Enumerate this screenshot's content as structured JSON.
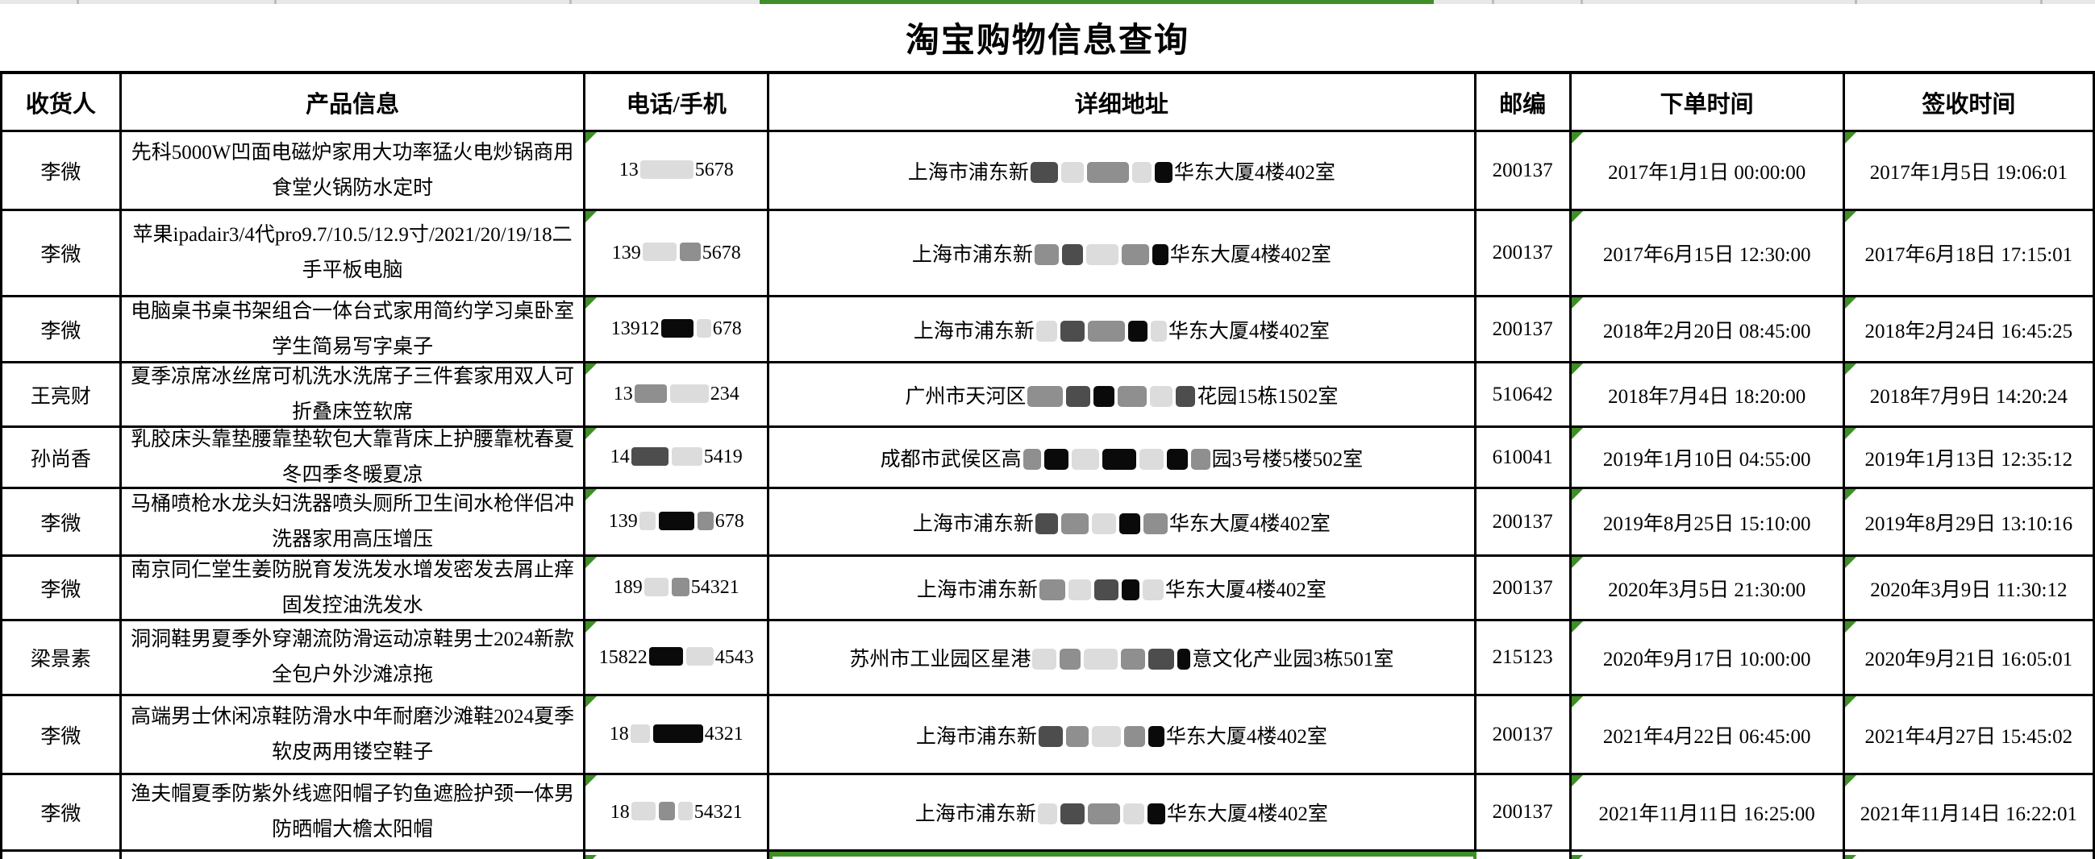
{
  "page": {
    "title": "淘宝购物信息查询"
  },
  "colors": {
    "accent_green": "#3f8e27",
    "grid_black": "#000000",
    "strip_gray": "#e8e8e8"
  },
  "table": {
    "columns": [
      {
        "key": "recipient",
        "label": "收货人",
        "marker": false
      },
      {
        "key": "product",
        "label": "产品信息",
        "marker": false
      },
      {
        "key": "phone",
        "label": "电话/手机",
        "marker": true
      },
      {
        "key": "address",
        "label": "详细地址",
        "marker": false
      },
      {
        "key": "postal",
        "label": "邮编",
        "marker": false
      },
      {
        "key": "order_time",
        "label": "下单时间",
        "marker": true
      },
      {
        "key": "sign_time",
        "label": "签收时间",
        "marker": true
      }
    ],
    "rows": [
      {
        "recipient": "李微",
        "product": "先科5000W凹面电磁炉家用大功率猛火电炒锅商用食堂火锅防水定时",
        "phone": {
          "segments": [
            {
              "t": "13"
            },
            {
              "m": "light",
              "w": 66
            },
            {
              "t": "5678"
            }
          ]
        },
        "address": {
          "segments": [
            {
              "t": "上海市浦东新"
            },
            {
              "m": "dark",
              "w": 34
            },
            {
              "m": "light",
              "w": 28
            },
            {
              "m": "mid",
              "w": 52
            },
            {
              "m": "light",
              "w": 24
            },
            {
              "m": "black",
              "w": 22
            },
            {
              "t": "华东大厦4楼402室"
            }
          ]
        },
        "postal": "200137",
        "order_time": "2017年1月1日 00:00:00",
        "sign_time": "2017年1月5日 19:06:01"
      },
      {
        "recipient": "李微",
        "product": "苹果ipadair3/4代pro9.7/10.5/12.9寸/2021/20/19/18二手平板电脑",
        "phone": {
          "segments": [
            {
              "t": "139"
            },
            {
              "m": "light",
              "w": 42
            },
            {
              "m": "mid",
              "w": 26
            },
            {
              "t": "5678"
            }
          ]
        },
        "address": {
          "segments": [
            {
              "t": "上海市浦东新"
            },
            {
              "m": "mid",
              "w": 30
            },
            {
              "m": "dark",
              "w": 26
            },
            {
              "m": "light",
              "w": 40
            },
            {
              "m": "mid",
              "w": 34
            },
            {
              "m": "black",
              "w": 20
            },
            {
              "t": "华东大厦4楼402室"
            }
          ]
        },
        "postal": "200137",
        "order_time": "2017年6月15日 12:30:00",
        "sign_time": "2017年6月18日 17:15:01"
      },
      {
        "recipient": "李微",
        "product": "电脑桌书桌书架组合一体台式家用简约学习桌卧室学生简易写字桌子",
        "phone": {
          "segments": [
            {
              "t": "13912"
            },
            {
              "m": "black",
              "w": 40
            },
            {
              "m": "light",
              "w": 18
            },
            {
              "t": "678"
            }
          ]
        },
        "address": {
          "segments": [
            {
              "t": "上海市浦东新"
            },
            {
              "m": "light",
              "w": 26
            },
            {
              "m": "dark",
              "w": 30
            },
            {
              "m": "mid",
              "w": 46
            },
            {
              "m": "black",
              "w": 24
            },
            {
              "m": "light",
              "w": 20
            },
            {
              "t": "华东大厦4楼402室"
            }
          ]
        },
        "postal": "200137",
        "order_time": "2018年2月20日 08:45:00",
        "sign_time": "2018年2月24日 16:45:25"
      },
      {
        "recipient": "王亮财",
        "product": "夏季凉席冰丝席可机洗水洗席子三件套家用双人可折叠床笠软席",
        "phone": {
          "segments": [
            {
              "t": "13"
            },
            {
              "m": "mid",
              "w": 40
            },
            {
              "m": "light",
              "w": 48
            },
            {
              "t": "234"
            }
          ]
        },
        "address": {
          "segments": [
            {
              "t": "广州市天河区"
            },
            {
              "m": "mid",
              "w": 44
            },
            {
              "m": "dark",
              "w": 30
            },
            {
              "m": "black",
              "w": 26
            },
            {
              "m": "mid",
              "w": 36
            },
            {
              "m": "light",
              "w": 28
            },
            {
              "m": "dark",
              "w": 24
            },
            {
              "t": "花园15栋1502室"
            }
          ]
        },
        "postal": "510642",
        "order_time": "2018年7月4日 18:20:00",
        "sign_time": "2018年7月9日 14:20:24"
      },
      {
        "recipient": "孙尚香",
        "product": "乳胶床头靠垫腰靠垫软包大靠背床上护腰靠枕春夏冬四季冬暖夏凉",
        "phone": {
          "segments": [
            {
              "t": "14"
            },
            {
              "m": "dark",
              "w": 46
            },
            {
              "m": "light",
              "w": 38
            },
            {
              "t": "5419"
            }
          ]
        },
        "address": {
          "segments": [
            {
              "t": "成都市武侯区高"
            },
            {
              "m": "mid",
              "w": 22
            },
            {
              "m": "black",
              "w": 30
            },
            {
              "m": "light",
              "w": 34
            },
            {
              "m": "black",
              "w": 42
            },
            {
              "m": "light",
              "w": 30
            },
            {
              "m": "black",
              "w": 26
            },
            {
              "m": "mid",
              "w": 24
            },
            {
              "t": "园3号楼5楼502室"
            }
          ]
        },
        "postal": "610041",
        "order_time": "2019年1月10日 04:55:00",
        "sign_time": "2019年1月13日 12:35:12"
      },
      {
        "recipient": "李微",
        "product": "马桶喷枪水龙头妇洗器喷头厕所卫生间水枪伴侣冲洗器家用高压增压",
        "phone": {
          "segments": [
            {
              "t": "139"
            },
            {
              "m": "light",
              "w": 20
            },
            {
              "m": "black",
              "w": 44
            },
            {
              "m": "mid",
              "w": 20
            },
            {
              "t": "678"
            }
          ]
        },
        "address": {
          "segments": [
            {
              "t": "上海市浦东新"
            },
            {
              "m": "dark",
              "w": 28
            },
            {
              "m": "mid",
              "w": 34
            },
            {
              "m": "light",
              "w": 30
            },
            {
              "m": "black",
              "w": 26
            },
            {
              "m": "mid",
              "w": 30
            },
            {
              "t": "华东大厦4楼402室"
            }
          ]
        },
        "postal": "200137",
        "order_time": "2019年8月25日 15:10:00",
        "sign_time": "2019年8月29日 13:10:16"
      },
      {
        "recipient": "李微",
        "product": "南京同仁堂生姜防脱育发洗发水增发密发去屑止痒固发控油洗发水",
        "phone": {
          "segments": [
            {
              "t": "189"
            },
            {
              "m": "light",
              "w": 30
            },
            {
              "m": "mid",
              "w": 22
            },
            {
              "t": "54321"
            }
          ]
        },
        "address": {
          "segments": [
            {
              "t": "上海市浦东新"
            },
            {
              "m": "mid",
              "w": 32
            },
            {
              "m": "light",
              "w": 28
            },
            {
              "m": "dark",
              "w": 30
            },
            {
              "m": "black",
              "w": 22
            },
            {
              "m": "light",
              "w": 26
            },
            {
              "t": "华东大厦4楼402室"
            }
          ]
        },
        "postal": "200137",
        "order_time": "2020年3月5日 21:30:00",
        "sign_time": "2020年3月9日 11:30:12"
      },
      {
        "recipient": "梁景素",
        "product": "洞洞鞋男夏季外穿潮流防滑运动凉鞋男士2024新款全包户外沙滩凉拖",
        "phone": {
          "segments": [
            {
              "t": "15822"
            },
            {
              "m": "black",
              "w": 42
            },
            {
              "m": "light",
              "w": 34
            },
            {
              "t": "4543"
            }
          ]
        },
        "address": {
          "segments": [
            {
              "t": "苏州市工业园区星港"
            },
            {
              "m": "light",
              "w": 30
            },
            {
              "m": "mid",
              "w": 26
            },
            {
              "m": "light",
              "w": 42
            },
            {
              "m": "mid",
              "w": 30
            },
            {
              "m": "dark",
              "w": 32
            },
            {
              "m": "black",
              "w": 16
            },
            {
              "t": "意文化产业园3栋501室"
            }
          ]
        },
        "postal": "215123",
        "order_time": "2020年9月17日 10:00:00",
        "sign_time": "2020年9月21日 16:05:01"
      },
      {
        "recipient": "李微",
        "product": "高端男士休闲凉鞋防滑水中年耐磨沙滩鞋2024夏季软皮两用镂空鞋子",
        "phone": {
          "segments": [
            {
              "t": "18"
            },
            {
              "m": "light",
              "w": 24
            },
            {
              "m": "black",
              "w": 62
            },
            {
              "t": "4321"
            }
          ]
        },
        "address": {
          "segments": [
            {
              "t": "上海市浦东新"
            },
            {
              "m": "dark",
              "w": 30
            },
            {
              "m": "mid",
              "w": 28
            },
            {
              "m": "light",
              "w": 36
            },
            {
              "m": "mid",
              "w": 26
            },
            {
              "m": "black",
              "w": 20
            },
            {
              "t": "华东大厦4楼402室"
            }
          ]
        },
        "postal": "200137",
        "order_time": "2021年4月22日 06:45:00",
        "sign_time": "2021年4月27日 15:45:02"
      },
      {
        "recipient": "李微",
        "product": "渔夫帽夏季防紫外线遮阳帽子钓鱼遮脸护颈一体男防晒帽大檐太阳帽",
        "phone": {
          "segments": [
            {
              "t": "18"
            },
            {
              "m": "light",
              "w": 30
            },
            {
              "m": "mid",
              "w": 20
            },
            {
              "m": "light",
              "w": 18
            },
            {
              "t": "54321"
            }
          ]
        },
        "address": {
          "segments": [
            {
              "t": "上海市浦东新"
            },
            {
              "m": "light",
              "w": 24
            },
            {
              "m": "dark",
              "w": 30
            },
            {
              "m": "mid",
              "w": 40
            },
            {
              "m": "light",
              "w": 26
            },
            {
              "m": "black",
              "w": 22
            },
            {
              "t": "华东大厦4楼402室"
            }
          ]
        },
        "postal": "200137",
        "order_time": "2021年11月11日 16:25:00",
        "sign_time": "2021年11月14日 16:22:01"
      }
    ]
  },
  "partial_row": {
    "selected_key": "address",
    "marker_keys": [
      "phone",
      "order_time",
      "sign_time"
    ]
  }
}
